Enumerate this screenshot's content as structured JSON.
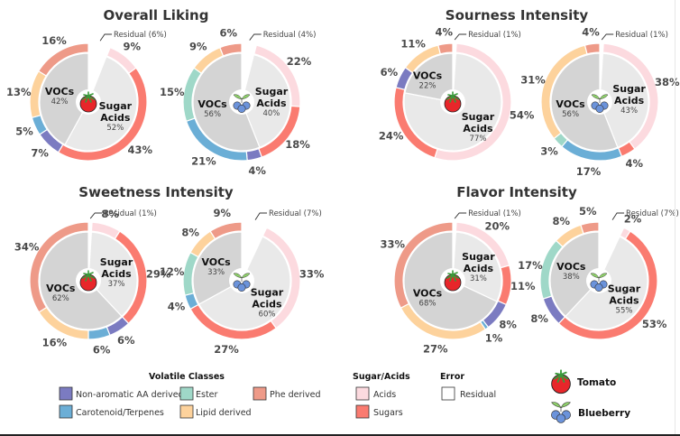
{
  "colors": {
    "non_aromatic": "#7b7bc1",
    "carotenoid": "#6baed6",
    "ester": "#9fd8c8",
    "lipid": "#fdd29c",
    "phe": "#ee9a88",
    "acids": "#fcdadf",
    "sugars": "#fa7b70",
    "residual": "#ffffff",
    "vocs_inner": "#d4d4d4",
    "sugar_acids_inner": "#e9e9e9"
  },
  "chart_data": [
    {
      "type": "pie",
      "title": "Overall Liking",
      "charts": [
        {
          "fruit": "tomato",
          "residual": 6,
          "residual_label": "Residual (6%)",
          "inner": {
            "sugar_acids": 52,
            "vocs": 42,
            "sugar_acids_label": "52%",
            "vocs_label": "42%"
          },
          "outer": [
            {
              "class": "acids",
              "value": 9,
              "label": "9%"
            },
            {
              "class": "sugars",
              "value": 43,
              "label": "43%"
            },
            {
              "class": "non_aromatic",
              "value": 7,
              "label": "7%"
            },
            {
              "class": "carotenoid",
              "value": 5,
              "label": "5%"
            },
            {
              "class": "lipid",
              "value": 13,
              "label": "13%"
            },
            {
              "class": "phe",
              "value": 16,
              "label": "16%"
            }
          ]
        },
        {
          "fruit": "blueberry",
          "residual": 4,
          "residual_label": "Residual (4%)",
          "inner": {
            "sugar_acids": 40,
            "vocs": 56,
            "sugar_acids_label": "40%",
            "vocs_label": "56%"
          },
          "outer": [
            {
              "class": "acids",
              "value": 22,
              "label": "22%"
            },
            {
              "class": "sugars",
              "value": 18,
              "label": "18%"
            },
            {
              "class": "non_aromatic",
              "value": 4,
              "label": "4%"
            },
            {
              "class": "carotenoid",
              "value": 21,
              "label": "21%"
            },
            {
              "class": "ester",
              "value": 15,
              "label": "15%"
            },
            {
              "class": "lipid",
              "value": 9,
              "label": "9%"
            },
            {
              "class": "phe",
              "value": 6,
              "label": "6%"
            }
          ]
        }
      ]
    },
    {
      "type": "pie",
      "title": "Sourness Intensity",
      "charts": [
        {
          "fruit": "tomato",
          "residual": 1,
          "residual_label": "Residual (1%)",
          "inner": {
            "sugar_acids": 77,
            "vocs": 22,
            "sugar_acids_label": "77%",
            "vocs_label": "22%"
          },
          "outer": [
            {
              "class": "acids",
              "value": 54,
              "label": "54%"
            },
            {
              "class": "sugars",
              "value": 24,
              "label": "24%"
            },
            {
              "class": "non_aromatic",
              "value": 6,
              "label": "6%"
            },
            {
              "class": "lipid",
              "value": 11,
              "label": "11%"
            },
            {
              "class": "phe",
              "value": 4,
              "label": "4%"
            }
          ]
        },
        {
          "fruit": "blueberry",
          "residual": 1,
          "residual_label": "Residual (1%)",
          "inner": {
            "sugar_acids": 43,
            "vocs": 56,
            "sugar_acids_label": "43%",
            "vocs_label": "56%"
          },
          "outer": [
            {
              "class": "acids",
              "value": 38,
              "label": "38%"
            },
            {
              "class": "sugars",
              "value": 4,
              "label": "4%"
            },
            {
              "class": "carotenoid",
              "value": 17,
              "label": "17%"
            },
            {
              "class": "ester",
              "value": 3,
              "label": "3%"
            },
            {
              "class": "lipid",
              "value": 31,
              "label": "31%"
            },
            {
              "class": "phe",
              "value": 4,
              "label": "4%"
            }
          ]
        }
      ]
    },
    {
      "type": "pie",
      "title": "Sweetness Intensity",
      "charts": [
        {
          "fruit": "tomato",
          "residual": 1,
          "residual_label": "Residual (1%)",
          "inner": {
            "sugar_acids": 37,
            "vocs": 62,
            "sugar_acids_label": "37%",
            "vocs_label": "62%"
          },
          "outer": [
            {
              "class": "acids",
              "value": 8,
              "label": "8%"
            },
            {
              "class": "sugars",
              "value": 29,
              "label": "29%"
            },
            {
              "class": "non_aromatic",
              "value": 6,
              "label": "6%"
            },
            {
              "class": "carotenoid",
              "value": 6,
              "label": "6%"
            },
            {
              "class": "lipid",
              "value": 16,
              "label": "16%"
            },
            {
              "class": "phe",
              "value": 34,
              "label": "34%"
            }
          ]
        },
        {
          "fruit": "blueberry",
          "residual": 7,
          "residual_label": "Residual (7%)",
          "inner": {
            "sugar_acids": 60,
            "vocs": 33,
            "sugar_acids_label": "60%",
            "vocs_label": "33%"
          },
          "outer": [
            {
              "class": "acids",
              "value": 33,
              "label": "33%"
            },
            {
              "class": "sugars",
              "value": 27,
              "label": "27%"
            },
            {
              "class": "carotenoid",
              "value": 4,
              "label": "4%"
            },
            {
              "class": "ester",
              "value": 12,
              "label": "12%"
            },
            {
              "class": "lipid",
              "value": 8,
              "label": "8%"
            },
            {
              "class": "phe",
              "value": 9,
              "label": "9%"
            }
          ]
        }
      ]
    },
    {
      "type": "pie",
      "title": "Flavor Intensity",
      "charts": [
        {
          "fruit": "tomato",
          "residual": 1,
          "residual_label": "Residual (1%)",
          "inner": {
            "sugar_acids": 31,
            "vocs": 68,
            "sugar_acids_label": "31%",
            "vocs_label": "68%"
          },
          "outer": [
            {
              "class": "acids",
              "value": 20,
              "label": "20%"
            },
            {
              "class": "sugars",
              "value": 11,
              "label": "11%"
            },
            {
              "class": "non_aromatic",
              "value": 8,
              "label": "8%"
            },
            {
              "class": "carotenoid",
              "value": 1,
              "label": "1%"
            },
            {
              "class": "lipid",
              "value": 27,
              "label": "27%"
            },
            {
              "class": "phe",
              "value": 33,
              "label": "33%"
            }
          ]
        },
        {
          "fruit": "blueberry",
          "residual": 7,
          "residual_label": "Residual (7%)",
          "inner": {
            "sugar_acids": 55,
            "vocs": 38,
            "sugar_acids_label": "55%",
            "vocs_label": "38%"
          },
          "outer": [
            {
              "class": "acids",
              "value": 2,
              "label": "2%"
            },
            {
              "class": "sugars",
              "value": 53,
              "label": "53%"
            },
            {
              "class": "non_aromatic",
              "value": 8,
              "label": "8%"
            },
            {
              "class": "ester",
              "value": 17,
              "label": "17%"
            },
            {
              "class": "lipid",
              "value": 8,
              "label": "8%"
            },
            {
              "class": "phe",
              "value": 5,
              "label": "5%"
            }
          ]
        }
      ]
    }
  ],
  "inner_labels": {
    "vocs": "VOCs",
    "sugar_line1": "Sugar",
    "sugar_line2": "Acids"
  },
  "legend": {
    "volatile_title": "Volatile Classes",
    "volatile_items": [
      {
        "class": "non_aromatic",
        "label": "Non-aromatic AA derived"
      },
      {
        "class": "ester",
        "label": "Ester"
      },
      {
        "class": "phe",
        "label": "Phe derived"
      },
      {
        "class": "carotenoid",
        "label": "Carotenoid/Terpenes"
      },
      {
        "class": "lipid",
        "label": "Lipid derived"
      }
    ],
    "sugar_title": "Sugar/Acids",
    "sugar_items": [
      {
        "class": "acids",
        "label": "Acids"
      },
      {
        "class": "sugars",
        "label": "Sugars"
      }
    ],
    "error_title": "Error",
    "error_items": [
      {
        "class": "residual",
        "label": "Residual"
      }
    ],
    "fruits": [
      {
        "icon": "tomato-icon",
        "label": "Tomato"
      },
      {
        "icon": "blueberry-icon",
        "label": "Blueberry"
      }
    ]
  }
}
